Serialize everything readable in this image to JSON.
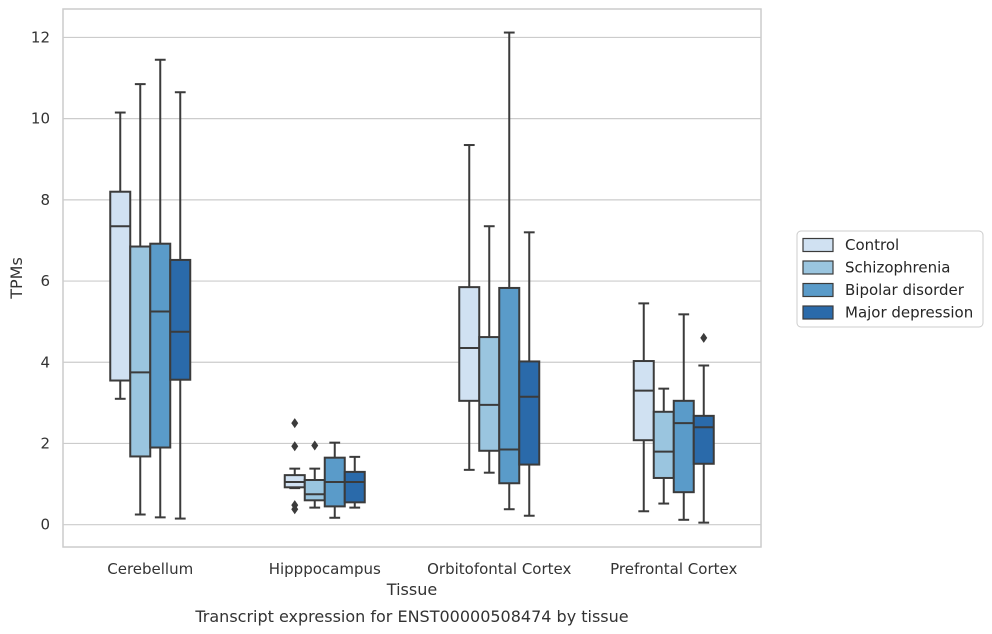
{
  "chart_data": {
    "type": "box",
    "xlabel": "Tissue",
    "ylabel": "TPMs",
    "caption": "Transcript expression for ENST00000508474 by tissue",
    "ylim": [
      -0.55,
      12.7
    ],
    "yticks": [
      0,
      2,
      4,
      6,
      8,
      10,
      12
    ],
    "grid": true,
    "legend_position": "right",
    "categories": [
      "Cerebellum",
      "Hipppocampus",
      "Orbitofontal Cortex",
      "Prefrontal Cortex"
    ],
    "series": [
      {
        "name": "Control",
        "color": "#d0e1f2",
        "boxes": [
          {
            "whislo": 3.1,
            "q1": 3.55,
            "med": 7.35,
            "q3": 8.2,
            "whishi": 10.15,
            "fliers": []
          },
          {
            "whislo": 0.9,
            "q1": 0.92,
            "med": 1.05,
            "q3": 1.22,
            "whishi": 1.38,
            "fliers": [
              2.5,
              1.93,
              0.48,
              0.38
            ]
          },
          {
            "whislo": 1.35,
            "q1": 3.05,
            "med": 4.35,
            "q3": 5.85,
            "whishi": 9.35,
            "fliers": []
          },
          {
            "whislo": 0.33,
            "q1": 2.08,
            "med": 3.3,
            "q3": 4.03,
            "whishi": 5.45,
            "fliers": []
          }
        ]
      },
      {
        "name": "Schizophrenia",
        "color": "#9ac5df",
        "boxes": [
          {
            "whislo": 0.25,
            "q1": 1.68,
            "med": 3.75,
            "q3": 6.85,
            "whishi": 10.85,
            "fliers": []
          },
          {
            "whislo": 0.42,
            "q1": 0.6,
            "med": 0.75,
            "q3": 1.1,
            "whishi": 1.38,
            "fliers": [
              1.95
            ]
          },
          {
            "whislo": 1.28,
            "q1": 1.82,
            "med": 2.95,
            "q3": 4.62,
            "whishi": 7.35,
            "fliers": []
          },
          {
            "whislo": 0.52,
            "q1": 1.15,
            "med": 1.8,
            "q3": 2.78,
            "whishi": 3.35,
            "fliers": []
          }
        ]
      },
      {
        "name": "Bipolar disorder",
        "color": "#5a9bc9",
        "boxes": [
          {
            "whislo": 0.18,
            "q1": 1.9,
            "med": 5.25,
            "q3": 6.92,
            "whishi": 11.45,
            "fliers": []
          },
          {
            "whislo": 0.17,
            "q1": 0.45,
            "med": 1.05,
            "q3": 1.65,
            "whishi": 2.02,
            "fliers": []
          },
          {
            "whislo": 0.38,
            "q1": 1.02,
            "med": 1.85,
            "q3": 5.83,
            "whishi": 12.12,
            "fliers": []
          },
          {
            "whislo": 0.12,
            "q1": 0.8,
            "med": 2.5,
            "q3": 3.05,
            "whishi": 5.18,
            "fliers": []
          }
        ]
      },
      {
        "name": "Major depression",
        "color": "#2a6aaa",
        "boxes": [
          {
            "whislo": 0.15,
            "q1": 3.57,
            "med": 4.75,
            "q3": 6.52,
            "whishi": 10.65,
            "fliers": []
          },
          {
            "whislo": 0.42,
            "q1": 0.55,
            "med": 1.05,
            "q3": 1.3,
            "whishi": 1.67,
            "fliers": []
          },
          {
            "whislo": 0.22,
            "q1": 1.48,
            "med": 3.15,
            "q3": 4.02,
            "whishi": 7.2,
            "fliers": []
          },
          {
            "whislo": 0.05,
            "q1": 1.5,
            "med": 2.4,
            "q3": 2.68,
            "whishi": 3.92,
            "fliers": [
              4.6
            ]
          }
        ]
      }
    ]
  }
}
